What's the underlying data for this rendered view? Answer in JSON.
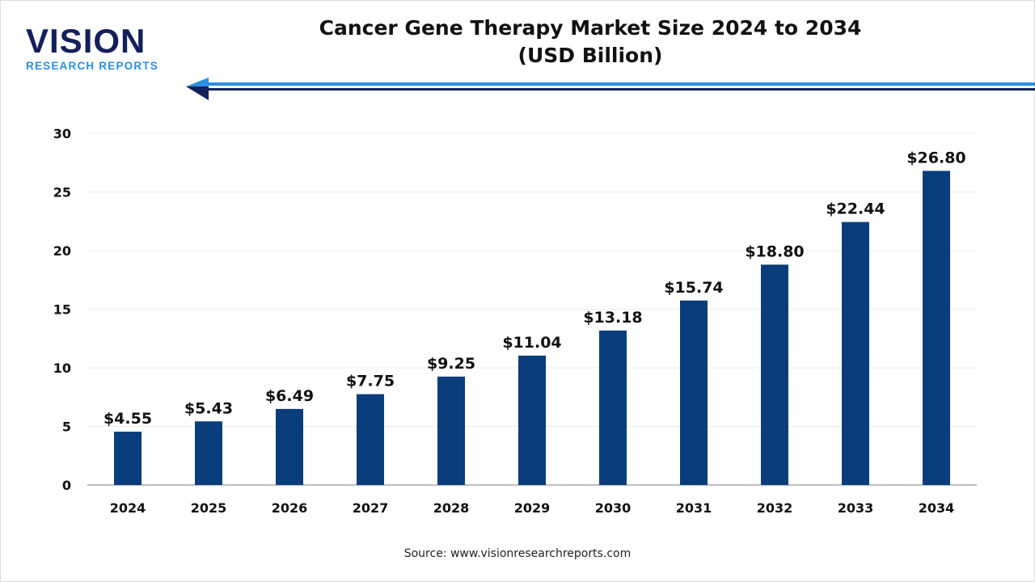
{
  "logo": {
    "main": "VISION",
    "sub": "RESEARCH REPORTS"
  },
  "source": "Source: www.visionresearchreports.com",
  "colors": {
    "bar": "#0a3d7c",
    "logo_dark": "#14205a",
    "logo_light": "#2a8ee0",
    "arrow_light": "#2a8ee0",
    "arrow_dark": "#14205a"
  },
  "chart_data": {
    "type": "bar",
    "title": "Cancer Gene Therapy Market Size 2024 to 2034",
    "subtitle": "(USD Billion)",
    "categories": [
      "2024",
      "2025",
      "2026",
      "2027",
      "2028",
      "2029",
      "2030",
      "2031",
      "2032",
      "2033",
      "2034"
    ],
    "values": [
      4.55,
      5.43,
      6.49,
      7.75,
      9.25,
      11.04,
      13.18,
      15.74,
      18.8,
      22.44,
      26.8
    ],
    "data_labels": [
      "$4.55",
      "$5.43",
      "$6.49",
      "$7.75",
      "$9.25",
      "$11.04",
      "$13.18",
      "$15.74",
      "$18.80",
      "$22.44",
      "$26.80"
    ],
    "yticks": [
      0,
      5,
      10,
      15,
      20,
      25,
      30
    ],
    "ylim": [
      0,
      30
    ],
    "grid": true,
    "xlabel": "",
    "ylabel": ""
  }
}
